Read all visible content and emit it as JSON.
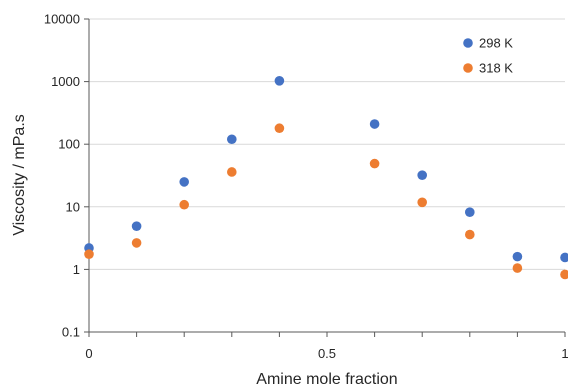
{
  "chart_data": {
    "type": "scatter",
    "title": "",
    "xlabel": "Amine mole fraction",
    "ylabel": "Viscosity / mPa.s",
    "xlim": [
      0,
      1
    ],
    "ylim": [
      0.1,
      10000
    ],
    "yscale": "log",
    "grid": true,
    "legend": "top-right",
    "x_ticks": [
      {
        "value": 0,
        "label": "0"
      },
      {
        "value": 0.5,
        "label": "0.5"
      },
      {
        "value": 1,
        "label": "1"
      }
    ],
    "y_ticks": [
      {
        "value": 0.1,
        "label": "0.1"
      },
      {
        "value": 1,
        "label": "1"
      },
      {
        "value": 10,
        "label": "10"
      },
      {
        "value": 100,
        "label": "100"
      },
      {
        "value": 1000,
        "label": "1000"
      },
      {
        "value": 10000,
        "label": "10000"
      }
    ],
    "series": [
      {
        "name": "298 K",
        "color": "#4472C4",
        "points": [
          {
            "x": 0,
            "y": 2.2
          },
          {
            "x": 0.1,
            "y": 4.9
          },
          {
            "x": 0.2,
            "y": 25
          },
          {
            "x": 0.3,
            "y": 120
          },
          {
            "x": 0.4,
            "y": 1030
          },
          {
            "x": 0.6,
            "y": 210
          },
          {
            "x": 0.7,
            "y": 32
          },
          {
            "x": 0.8,
            "y": 8.2
          },
          {
            "x": 0.9,
            "y": 1.6
          },
          {
            "x": 1.0,
            "y": 1.55
          }
        ]
      },
      {
        "name": "318 K",
        "color": "#ED7D31",
        "points": [
          {
            "x": 0,
            "y": 1.75
          },
          {
            "x": 0.1,
            "y": 2.65
          },
          {
            "x": 0.2,
            "y": 10.8
          },
          {
            "x": 0.3,
            "y": 36
          },
          {
            "x": 0.4,
            "y": 180
          },
          {
            "x": 0.6,
            "y": 49
          },
          {
            "x": 0.7,
            "y": 11.8
          },
          {
            "x": 0.8,
            "y": 3.6
          },
          {
            "x": 0.9,
            "y": 1.05
          },
          {
            "x": 1.0,
            "y": 0.83
          }
        ]
      }
    ]
  }
}
